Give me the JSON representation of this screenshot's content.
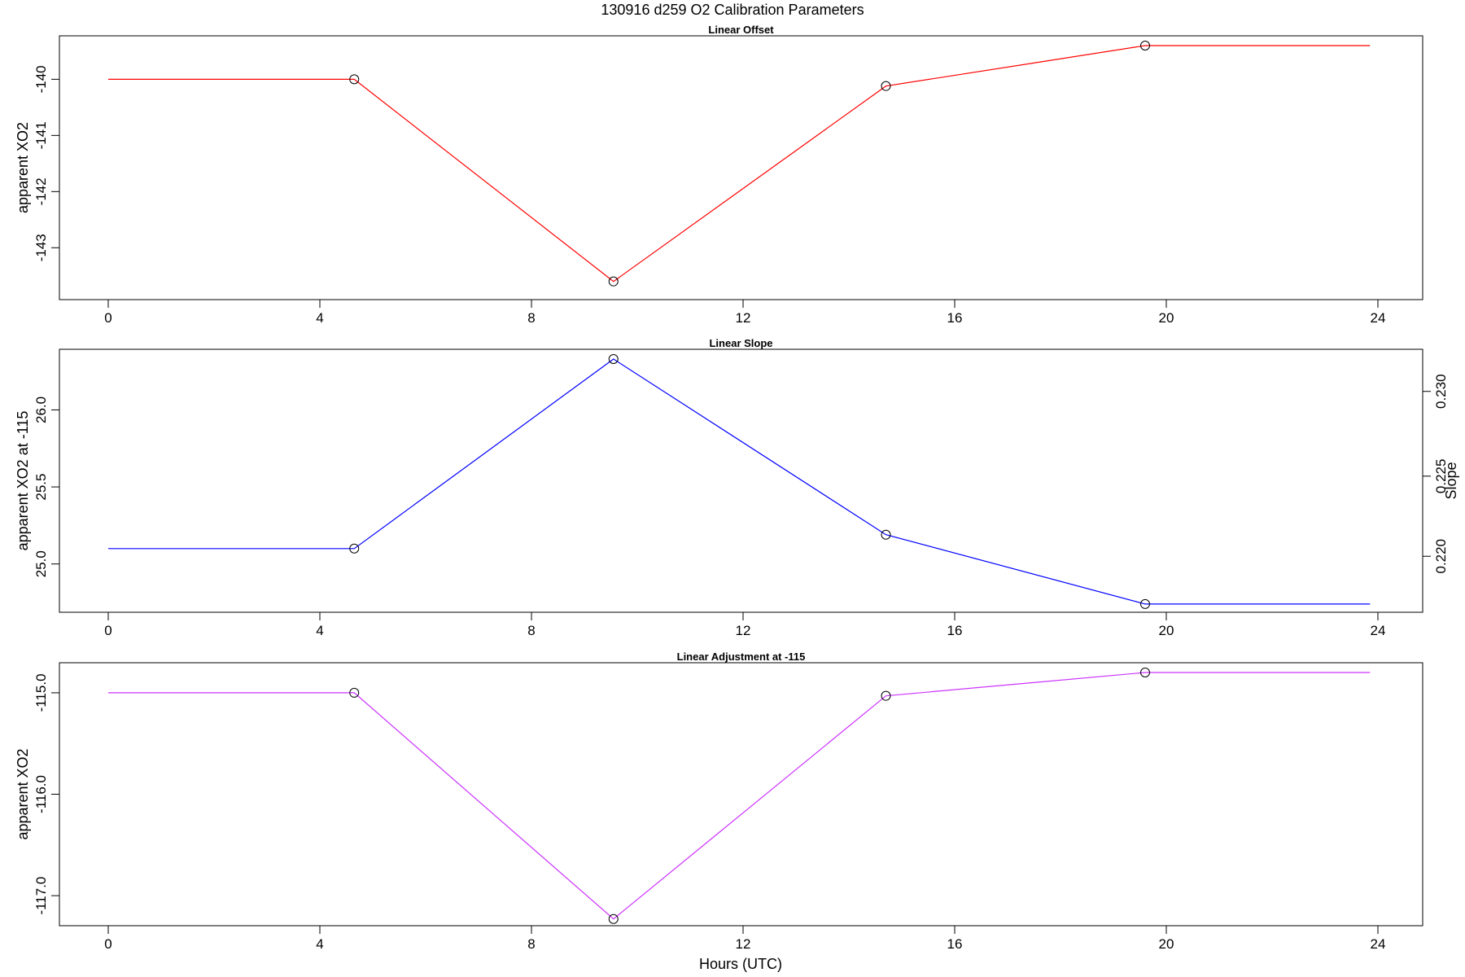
{
  "figure": {
    "title": "130916   d259   O2 Calibration Parameters",
    "xlabel": "Hours (UTC)"
  },
  "chart_data": [
    {
      "type": "line",
      "title": "Linear Offset",
      "ylabel": "apparent XO2",
      "color": "#ff0000",
      "xlim": [
        0,
        24
      ],
      "ylim": [
        -143.75,
        -139.4
      ],
      "x_ticks": [
        0,
        4,
        8,
        12,
        16,
        20,
        24
      ],
      "y_ticks": [
        -140,
        -141,
        -142,
        -143
      ],
      "y_tick_labels": [
        "-140",
        "-141",
        "-142",
        "-143"
      ],
      "x": [
        0,
        4.65,
        9.55,
        14.7,
        19.6,
        23.85
      ],
      "values": [
        -140.0,
        -140.0,
        -143.6,
        -140.12,
        -139.4,
        -139.4
      ],
      "markers": [
        false,
        true,
        true,
        true,
        true,
        false
      ]
    },
    {
      "type": "line",
      "title": "Linear Slope",
      "ylabel": "apparent XO2 at -115",
      "y2label": "Slope",
      "color": "#0000ff",
      "xlim": [
        0,
        24
      ],
      "ylim": [
        24.75,
        26.33
      ],
      "x_ticks": [
        0,
        4,
        8,
        12,
        16,
        20,
        24
      ],
      "y_ticks": [
        25.0,
        25.5,
        26.0
      ],
      "y_tick_labels": [
        "25.0",
        "25.5",
        "26.0"
      ],
      "y2_ticks": [
        25.05,
        25.57,
        26.12
      ],
      "y2_tick_labels": [
        "0.220",
        "0.225",
        "0.230"
      ],
      "x": [
        0,
        4.65,
        9.55,
        14.7,
        19.6,
        23.85
      ],
      "values": [
        25.1,
        25.1,
        26.33,
        25.19,
        24.74,
        24.74
      ],
      "markers": [
        false,
        true,
        true,
        true,
        true,
        false
      ]
    },
    {
      "type": "line",
      "title": "Linear Adjustment at -115",
      "ylabel": "apparent XO2",
      "color": "#cc33ff",
      "xlim": [
        0,
        24
      ],
      "ylim": [
        -117.2,
        -114.8
      ],
      "x_ticks": [
        0,
        4,
        8,
        12,
        16,
        20,
        24
      ],
      "y_ticks": [
        -115.0,
        -116.0,
        -117.0
      ],
      "y_tick_labels": [
        "-115.0",
        "-116.0",
        "-117.0"
      ],
      "x": [
        0,
        4.65,
        9.55,
        14.7,
        19.6,
        23.85
      ],
      "values": [
        -115.0,
        -115.0,
        -117.23,
        -115.03,
        -114.8,
        -114.8
      ],
      "markers": [
        false,
        true,
        true,
        true,
        true,
        false
      ]
    }
  ]
}
